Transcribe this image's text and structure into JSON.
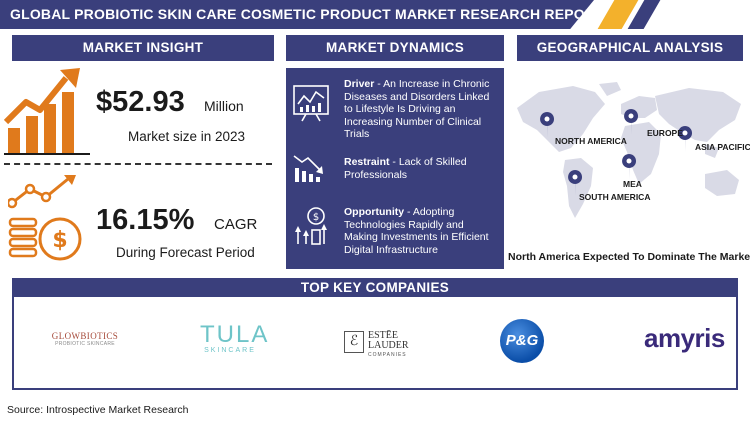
{
  "title": "GLOBAL PROBIOTIC SKIN CARE COSMETIC PRODUCT  MARKET RESEARCH REPORT",
  "colors": {
    "primary": "#3a3f7c",
    "accent": "#f3b12c",
    "orange": "#e07a1c"
  },
  "sections": {
    "market_insight": "MARKET INSIGHT",
    "market_dynamics": "MARKET DYNAMICS",
    "geographical_analysis": "GEOGRAPHICAL ANALYSIS"
  },
  "insight": {
    "market_size_value": "$52.93",
    "market_size_unit": "Million",
    "market_size_label": "Market size in 2023",
    "cagr_value": "16.15%",
    "cagr_unit": "CAGR",
    "cagr_label": "During Forecast Period",
    "icons": [
      "growth-chart-icon",
      "money-growth-icon"
    ]
  },
  "dynamics": [
    {
      "label": "Driver",
      "text": " - An Increase in Chronic Diseases and Disorders Linked to Lifestyle Is Driving an Increasing Number of Clinical Trials",
      "icon": "dashboard-chart-icon"
    },
    {
      "label": "Restraint",
      "text": " - Lack of Skilled Professionals",
      "icon": "declining-bars-icon"
    },
    {
      "label": "Opportunity",
      "text": " - Adopting Technologies Rapidly and Making Investments in Efficient Digital Infrastructure",
      "icon": "growth-opportunity-icon"
    }
  ],
  "geo": {
    "regions": [
      "NORTH AMERICA",
      "EUROPE",
      "ASIA PACIFIC",
      "MEA",
      "SOUTH AMERICA"
    ],
    "caption": "North America Expected To Dominate The Market"
  },
  "companies": {
    "header": "TOP KEY COMPANIES",
    "logos": [
      {
        "name": "GLOWBIOTICS",
        "tagline": "PROBIOTIC SKINCARE"
      },
      {
        "name": "TULA",
        "tagline": "SKINCARE"
      },
      {
        "name": "ESTĒE LAUDER",
        "tagline": "COMPANIES"
      },
      {
        "name": "P&G",
        "tagline": ""
      },
      {
        "name": "amyris",
        "tagline": ""
      }
    ]
  },
  "source": "Source: Introspective Market Research"
}
